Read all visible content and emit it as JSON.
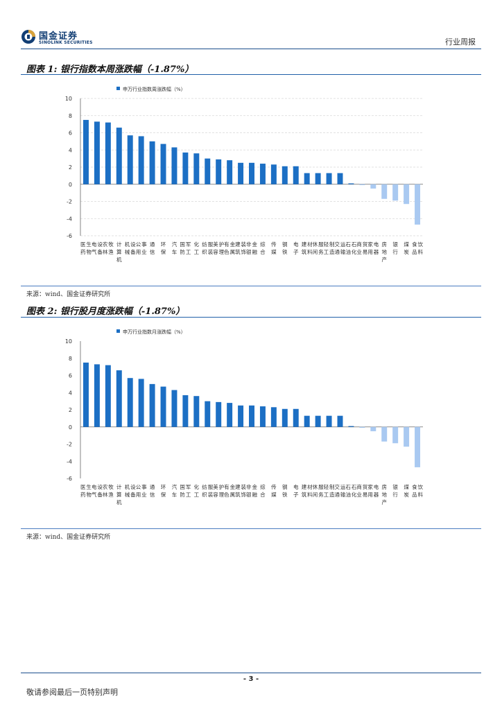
{
  "header": {
    "logo_cn": "国金证券",
    "logo_en": "SINOLINK SECURITIES",
    "doc_type": "行业周报"
  },
  "figures": [
    {
      "title": "图表 1:  银行指数本周涨跌幅（-1.87%）",
      "source": "来源：wind、国金证券研究所"
    },
    {
      "title": "图表 2:  银行股月度涨跌幅（-1.87%）",
      "source": "来源：wind、国金证券研究所"
    }
  ],
  "chart_data": [
    {
      "type": "bar",
      "legend": "申万行业指数周涨跌幅（%）",
      "legend_position": "top-left",
      "ylim": [
        -6,
        10
      ],
      "yticks": [
        "10",
        "8",
        "6",
        "4",
        "2",
        "0",
        "-2",
        "-4",
        "-6"
      ],
      "grid": true,
      "categories": [
        "医药生物",
        "电气设备",
        "农林牧渔",
        "计算机",
        "机械设备",
        "公用事业",
        "通信",
        "环保",
        "汽车",
        "国防军工",
        "化工",
        "纺织服装",
        "美容护理",
        "有色金属",
        "建筑装饰",
        "非银金融",
        "综合",
        "传媒",
        "钢铁",
        "电子",
        "建筑材料",
        "休闲服务",
        "轻工制造",
        "交通运输",
        "石油石化",
        "商业贸易",
        "家用电器",
        "房地产",
        "银行",
        "煤炭",
        "食品饮料"
      ],
      "values": [
        7.5,
        7.3,
        7.2,
        6.6,
        5.7,
        5.6,
        5.0,
        4.7,
        4.3,
        3.7,
        3.6,
        3.0,
        2.9,
        2.8,
        2.5,
        2.5,
        2.4,
        2.3,
        2.1,
        2.1,
        1.3,
        1.3,
        1.3,
        1.3,
        0.1,
        -0.1,
        -0.5,
        -1.7,
        -1.9,
        -2.3,
        -4.7
      ],
      "colors": {
        "positive": "#1c6fc4",
        "negative": "#a9c9f1"
      }
    },
    {
      "type": "bar",
      "legend": "申万行业指数月涨跌幅（%）",
      "legend_position": "top-left",
      "ylim": [
        -6,
        10
      ],
      "yticks": [
        "10",
        "8",
        "6",
        "4",
        "2",
        "0",
        "-2",
        "-4",
        "-6"
      ],
      "grid": false,
      "categories": [
        "医药生物",
        "电气设备",
        "农林牧渔",
        "计算机",
        "机械设备",
        "公用事业",
        "通信",
        "环保",
        "汽车",
        "国防军工",
        "化工",
        "纺织服装",
        "美容护理",
        "有色金属",
        "建筑装饰",
        "非银金融",
        "综合",
        "传媒",
        "钢铁",
        "电子",
        "建筑材料",
        "休闲服务",
        "轻工制造",
        "交通运输",
        "石油石化",
        "商业贸易",
        "家用电器",
        "房地产",
        "银行",
        "煤炭",
        "食品饮料"
      ],
      "values": [
        7.5,
        7.3,
        7.2,
        6.6,
        5.7,
        5.6,
        5.0,
        4.7,
        4.3,
        3.7,
        3.6,
        3.0,
        2.9,
        2.8,
        2.5,
        2.5,
        2.4,
        2.3,
        2.1,
        2.1,
        1.3,
        1.3,
        1.3,
        1.3,
        0.1,
        -0.1,
        -0.5,
        -1.7,
        -1.9,
        -2.3,
        -4.7
      ],
      "colors": {
        "positive": "#1c6fc4",
        "negative": "#a9c9f1"
      }
    }
  ],
  "footer": {
    "page": "- 3 -",
    "disclaimer": "敬请参阅最后一页特别声明"
  }
}
